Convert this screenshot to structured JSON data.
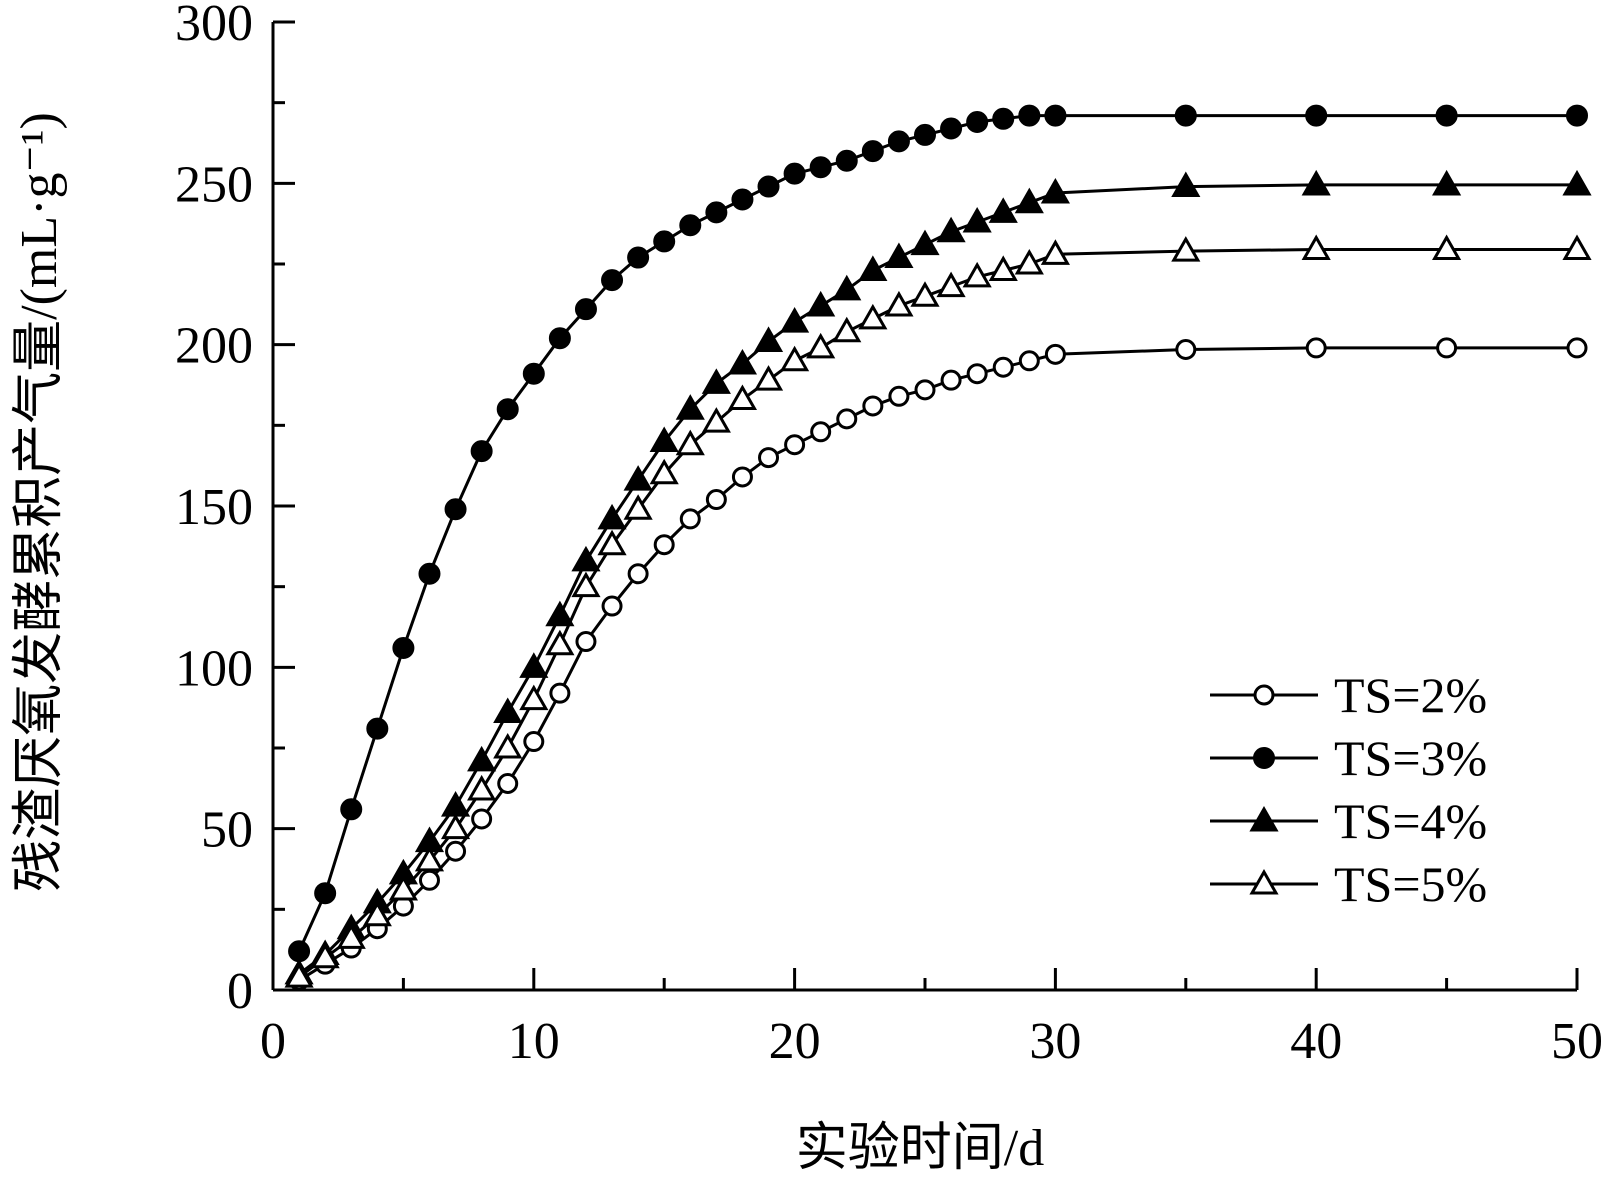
{
  "chart_data": {
    "type": "line",
    "title": "",
    "xlabel": "实验时间/d",
    "ylabel": "残渣厌氧发酵累积产气量/(mL·g⁻¹)",
    "xlim": [
      0,
      50
    ],
    "ylim": [
      0,
      300
    ],
    "xticks": [
      "0",
      "10",
      "20",
      "30",
      "40",
      "50"
    ],
    "yticks": [
      "0",
      "50",
      "100",
      "150",
      "200",
      "250",
      "300"
    ],
    "grid": false,
    "legend_position": "bottom-right",
    "series": [
      {
        "name": "TS=2%",
        "marker": "open-circle",
        "x": [
          1,
          2,
          3,
          4,
          5,
          6,
          7,
          8,
          9,
          10,
          11,
          12,
          13,
          14,
          15,
          16,
          17,
          18,
          19,
          20,
          21,
          22,
          23,
          24,
          25,
          26,
          27,
          28,
          29,
          30,
          35,
          40,
          45,
          50
        ],
        "y": [
          3,
          8,
          13,
          19,
          26,
          34,
          43,
          53,
          64,
          77,
          92,
          108,
          119,
          129,
          138,
          146,
          152,
          159,
          165,
          169,
          173,
          177,
          181,
          184,
          186,
          189,
          191,
          193,
          195,
          197,
          198.5,
          199,
          199,
          199
        ]
      },
      {
        "name": "TS=3%",
        "marker": "filled-circle",
        "x": [
          1,
          2,
          3,
          4,
          5,
          6,
          7,
          8,
          9,
          10,
          11,
          12,
          13,
          14,
          15,
          16,
          17,
          18,
          19,
          20,
          21,
          22,
          23,
          24,
          25,
          26,
          27,
          28,
          29,
          30,
          35,
          40,
          45,
          50
        ],
        "y": [
          12,
          30,
          56,
          81,
          106,
          129,
          149,
          167,
          180,
          191,
          202,
          211,
          220,
          227,
          232,
          237,
          241,
          245,
          249,
          253,
          255,
          257,
          260,
          263,
          265,
          267,
          269,
          270,
          271,
          271,
          271,
          271,
          271,
          271
        ]
      },
      {
        "name": "TS=4%",
        "marker": "filled-triangle",
        "x": [
          1,
          2,
          3,
          4,
          5,
          6,
          7,
          8,
          9,
          10,
          11,
          12,
          13,
          14,
          15,
          16,
          17,
          18,
          19,
          20,
          21,
          22,
          23,
          24,
          25,
          26,
          27,
          28,
          29,
          30,
          35,
          40,
          45,
          50
        ],
        "y": [
          5,
          11,
          19,
          27,
          36,
          46,
          57,
          71,
          86,
          100,
          116,
          133,
          146,
          158,
          170,
          180,
          188,
          194,
          201,
          207,
          212,
          217,
          223,
          227,
          231,
          235,
          238,
          241,
          244,
          247,
          249,
          249.5,
          249.5,
          249.5
        ]
      },
      {
        "name": "TS=5%",
        "marker": "open-triangle",
        "x": [
          1,
          2,
          3,
          4,
          5,
          6,
          7,
          8,
          9,
          10,
          11,
          12,
          13,
          14,
          15,
          16,
          17,
          18,
          19,
          20,
          21,
          22,
          23,
          24,
          25,
          26,
          27,
          28,
          29,
          30,
          35,
          40,
          45,
          50
        ],
        "y": [
          4,
          10,
          16,
          23,
          31,
          40,
          50,
          62,
          75,
          90,
          107,
          125,
          138,
          149,
          160,
          169,
          176,
          183,
          189,
          195,
          199,
          204,
          208,
          212,
          215,
          218,
          221,
          223,
          225,
          228,
          229,
          229.5,
          229.5,
          229.5
        ]
      }
    ]
  }
}
